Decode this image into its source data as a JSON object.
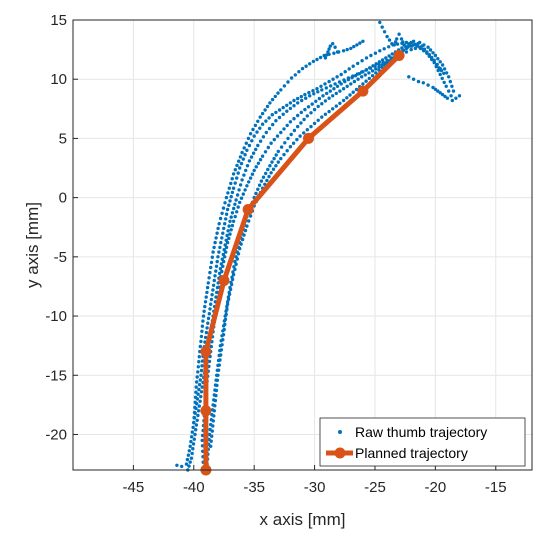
{
  "chart_data": {
    "type": "scatter",
    "title": "",
    "xlabel": "x axis [mm]",
    "ylabel": "y axis [mm]",
    "xlim": [
      -50,
      -12
    ],
    "ylim": [
      -23,
      15
    ],
    "xticks": [
      -45,
      -40,
      -35,
      -30,
      -25,
      -20,
      -15
    ],
    "yticks": [
      -20,
      -15,
      -10,
      -5,
      0,
      5,
      10,
      15
    ],
    "grid": true,
    "legend_position": "bottom-right",
    "colors": {
      "raw": "#0072BD",
      "planned": "#D95319"
    },
    "series": [
      {
        "name": "Raw thumb trajectory",
        "kind": "points",
        "paths": [
          {
            "x": [
              -41.4,
              -41.0,
              -40.6,
              -40.3,
              -40.0,
              -39.7,
              -39.4,
              -39.2,
              -38.9,
              -38.6,
              -38.3,
              -38.0,
              -37.6,
              -37.2,
              -36.7,
              -36.2,
              -35.6,
              -35.0,
              -34.3,
              -33.5,
              -32.6,
              -31.7,
              -30.8,
              -29.8,
              -28.8,
              -27.8,
              -26.8,
              -25.7,
              -24.6,
              -23.5,
              -22.4,
              -21.5,
              -20.7,
              -20.1,
              -19.6,
              -19.1,
              -18.7
            ],
            "y": [
              -22.6,
              -22.7,
              -22.5,
              -21.0,
              -19.0,
              -17.0,
              -15.0,
              -13.0,
              -11.0,
              -9.0,
              -7.0,
              -5.0,
              -3.0,
              -1.0,
              0.8,
              2.5,
              4.0,
              5.2,
              6.2,
              7.0,
              7.6,
              8.2,
              8.7,
              9.2,
              9.8,
              10.4,
              11.1,
              11.8,
              12.4,
              12.9,
              13.1,
              12.8,
              12.2,
              11.4,
              10.4,
              9.4,
              8.6
            ]
          },
          {
            "x": [
              -40.5,
              -40.2,
              -39.9,
              -39.6,
              -39.3,
              -39.0,
              -38.7,
              -38.4,
              -38.1,
              -37.8,
              -37.4,
              -37.0,
              -36.5,
              -36.0,
              -35.4,
              -34.7,
              -34.0,
              -33.2,
              -32.3,
              -31.4,
              -30.4,
              -29.4,
              -28.3,
              -27.2,
              -26.1,
              -25.0,
              -24.0,
              -23.0,
              -22.1,
              -21.3,
              -20.6,
              -20.0,
              -19.4,
              -18.9,
              -18.5
            ],
            "y": [
              -23.0,
              -22.0,
              -20.0,
              -18.0,
              -16.0,
              -14.0,
              -12.0,
              -10.0,
              -8.0,
              -6.0,
              -4.0,
              -2.0,
              -0.2,
              1.5,
              3.1,
              4.4,
              5.5,
              6.5,
              7.3,
              8.0,
              8.6,
              9.1,
              9.6,
              10.1,
              10.6,
              11.1,
              11.6,
              12.2,
              12.8,
              13.1,
              12.7,
              12.0,
              11.2,
              10.2,
              9.0
            ]
          },
          {
            "x": [
              -39.2,
              -39.3,
              -39.1,
              -38.9,
              -38.6,
              -38.3,
              -38.0,
              -37.6,
              -37.2,
              -36.7,
              -36.2,
              -35.6,
              -35.0,
              -34.3,
              -33.6,
              -32.8,
              -32.0,
              -31.1,
              -30.2,
              -29.3,
              -28.4,
              -27.5,
              -26.6,
              -25.7,
              -24.9,
              -24.1,
              -23.3,
              -22.5,
              -21.8,
              -21.1,
              -20.5,
              -19.9,
              -19.3
            ],
            "y": [
              -22.8,
              -20.5,
              -18.0,
              -15.5,
              -13.0,
              -10.5,
              -8.0,
              -5.8,
              -3.8,
              -2.0,
              -0.4,
              1.0,
              2.3,
              3.5,
              4.6,
              5.5,
              6.4,
              7.2,
              7.9,
              8.6,
              9.2,
              9.8,
              10.3,
              10.8,
              11.3,
              11.8,
              12.3,
              12.8,
              13.2,
              12.8,
              12.0,
              11.2,
              10.5
            ]
          },
          {
            "x": [
              -38.9,
              -38.7,
              -38.4,
              -38.1,
              -37.8,
              -37.4,
              -37.0,
              -36.6,
              -36.1,
              -35.6,
              -35.0,
              -34.4,
              -33.7,
              -33.0,
              -32.2,
              -31.4,
              -30.6,
              -29.7,
              -28.8,
              -27.9,
              -27.0,
              -26.1,
              -25.2,
              -24.4,
              -23.6,
              -22.8,
              -22.0,
              -21.3,
              -20.7,
              -20.1,
              -19.6
            ],
            "y": [
              -22.5,
              -20.0,
              -17.5,
              -15.0,
              -12.5,
              -10.0,
              -7.6,
              -5.4,
              -3.4,
              -1.6,
              0.0,
              1.4,
              2.7,
              3.9,
              5.0,
              6.0,
              6.9,
              7.7,
              8.4,
              9.0,
              9.6,
              10.2,
              10.7,
              11.2,
              11.7,
              12.1,
              12.5,
              12.7,
              12.3,
              11.6,
              10.9
            ]
          },
          {
            "x": [
              -38.6,
              -38.3,
              -38.0,
              -37.6,
              -37.2,
              -36.7,
              -36.2,
              -35.6,
              -35.0,
              -34.3,
              -33.6,
              -32.8,
              -32.0,
              -31.2,
              -30.3,
              -29.4,
              -28.5,
              -27.6,
              -26.8,
              -26.0,
              -25.2,
              -24.4,
              -23.7,
              -23.0,
              -22.3,
              -21.6
            ],
            "y": [
              -21.0,
              -18.0,
              -15.0,
              -12.0,
              -9.0,
              -6.5,
              -4.3,
              -2.4,
              -0.7,
              0.8,
              2.1,
              3.3,
              4.3,
              5.2,
              6.0,
              6.8,
              7.5,
              8.2,
              8.9,
              9.6,
              10.3,
              11.0,
              11.6,
              12.2,
              12.7,
              12.9
            ]
          },
          {
            "x": [
              -40.0,
              -39.8,
              -39.5,
              -39.2,
              -38.8,
              -38.4,
              -37.9,
              -37.3,
              -36.7,
              -36.0,
              -35.3,
              -34.5,
              -33.7,
              -32.8,
              -31.9,
              -31.0,
              -30.1,
              -29.2,
              -28.4,
              -27.6,
              -27.0,
              -26.5,
              -26.0
            ],
            "y": [
              -19.0,
              -16.0,
              -13.0,
              -10.0,
              -7.2,
              -4.6,
              -2.2,
              0.0,
              2.0,
              3.8,
              5.4,
              6.8,
              8.0,
              9.1,
              10.1,
              10.9,
              11.5,
              12.0,
              12.2,
              12.4,
              12.6,
              12.9,
              13.2
            ]
          },
          {
            "x": [
              -29.1,
              -28.9,
              -28.7,
              -28.5,
              -28.3,
              -28.1
            ],
            "y": [
              11.8,
              12.3,
              12.8,
              13.0,
              12.7,
              12.3
            ]
          },
          {
            "x": [
              -24.6,
              -24.4,
              -24.2,
              -24.0,
              -23.8,
              -23.6,
              -23.4,
              -23.2,
              -23.0,
              -22.8,
              -22.6,
              -22.4,
              -22.2,
              -22.0
            ],
            "y": [
              14.8,
              14.4,
              14.0,
              13.6,
              13.3,
              13.0,
              12.9,
              13.4,
              13.8,
              13.4,
              12.9,
              12.6,
              12.9,
              13.1
            ]
          },
          {
            "x": [
              -22.2,
              -21.8,
              -21.4,
              -21.0,
              -20.6,
              -20.2,
              -19.8,
              -19.4,
              -19.0,
              -18.6,
              -18.3,
              -18.0
            ],
            "y": [
              10.2,
              10.0,
              9.8,
              9.7,
              9.5,
              9.3,
              9.0,
              8.7,
              8.4,
              8.2,
              8.4,
              8.6
            ]
          }
        ]
      },
      {
        "name": "Planned trajectory",
        "kind": "line-markers",
        "x": [
          -39,
          -39,
          -39,
          -37.5,
          -35.5,
          -30.5,
          -26,
          -23
        ],
        "y": [
          -23,
          -18,
          -13,
          -7,
          -1,
          5,
          9,
          12
        ]
      }
    ]
  }
}
